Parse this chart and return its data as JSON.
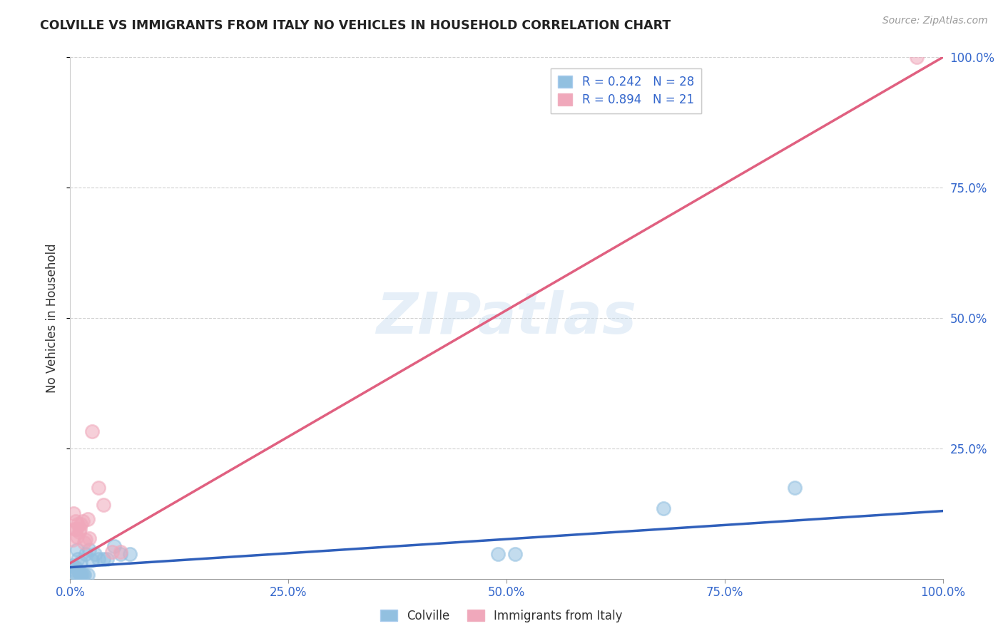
{
  "title": "COLVILLE VS IMMIGRANTS FROM ITALY NO VEHICLES IN HOUSEHOLD CORRELATION CHART",
  "source": "Source: ZipAtlas.com",
  "ylabel": "No Vehicles in Household",
  "xlim": [
    0,
    1.0
  ],
  "ylim": [
    0,
    1.0
  ],
  "xtick_labels": [
    "0.0%",
    "25.0%",
    "50.0%",
    "75.0%",
    "100.0%"
  ],
  "xtick_positions": [
    0,
    0.25,
    0.5,
    0.75,
    1.0
  ],
  "ytick_labels": [
    "25.0%",
    "50.0%",
    "75.0%",
    "100.0%"
  ],
  "ytick_positions": [
    0.25,
    0.5,
    0.75,
    1.0
  ],
  "legend_label1": "R = 0.242   N = 28",
  "legend_label2": "R = 0.894   N = 21",
  "legend_bottom1": "Colville",
  "legend_bottom2": "Immigrants from Italy",
  "watermark": "ZIPatlas",
  "colville_color": "#92c0e0",
  "italy_color": "#f0a8bb",
  "colville_line_color": "#3060bb",
  "italy_line_color": "#e06080",
  "colville_x": [
    0.003,
    0.004,
    0.005,
    0.006,
    0.007,
    0.008,
    0.009,
    0.01,
    0.011,
    0.012,
    0.013,
    0.014,
    0.016,
    0.018,
    0.02,
    0.022,
    0.025,
    0.028,
    0.032,
    0.038,
    0.042,
    0.05,
    0.058,
    0.068,
    0.49,
    0.51,
    0.68,
    0.83
  ],
  "colville_y": [
    0.025,
    0.018,
    0.01,
    0.022,
    0.01,
    0.055,
    0.038,
    0.012,
    0.008,
    0.032,
    0.008,
    0.008,
    0.008,
    0.048,
    0.008,
    0.055,
    0.035,
    0.048,
    0.038,
    0.038,
    0.038,
    0.062,
    0.048,
    0.048,
    0.048,
    0.048,
    0.135,
    0.175
  ],
  "italy_x": [
    0.003,
    0.004,
    0.005,
    0.006,
    0.007,
    0.008,
    0.009,
    0.01,
    0.011,
    0.012,
    0.014,
    0.016,
    0.018,
    0.02,
    0.022,
    0.025,
    0.032,
    0.038,
    0.048,
    0.058,
    0.97
  ],
  "italy_y": [
    0.075,
    0.125,
    0.095,
    0.11,
    0.095,
    0.08,
    0.105,
    0.09,
    0.095,
    0.105,
    0.11,
    0.07,
    0.075,
    0.115,
    0.078,
    0.282,
    0.175,
    0.142,
    0.052,
    0.052,
    1.0
  ],
  "colville_trend_x": [
    0.0,
    1.0
  ],
  "colville_trend_y": [
    0.022,
    0.13
  ],
  "italy_trend_x": [
    0.0,
    1.0
  ],
  "italy_trend_y": [
    0.03,
    1.0
  ]
}
